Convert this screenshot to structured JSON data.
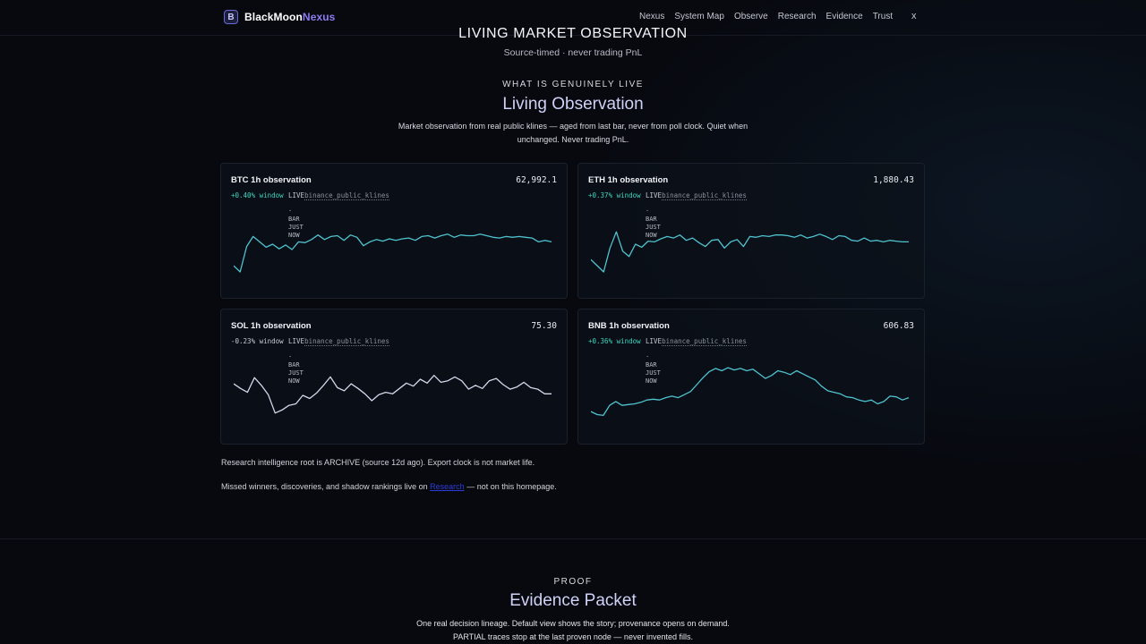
{
  "brand": {
    "mark": "B",
    "name": "BlackMoon",
    "accent": "Nexus"
  },
  "nav": [
    "Nexus",
    "System Map",
    "Observe",
    "Research",
    "Evidence",
    "Trust"
  ],
  "close_label": "x",
  "page": {
    "title": "LIVING MARKET OBSERVATION",
    "subtitle": "Source-timed · never trading PnL"
  },
  "live_section": {
    "eyebrow": "WHAT IS GENUINELY LIVE",
    "title": "Living Observation",
    "description": "Market observation from real public klines — aged from last bar, never from poll clock. Quiet when unchanged. Never trading PnL."
  },
  "cards": [
    {
      "title": "BTC 1h observation",
      "price": "62,992.1",
      "change": "+0.40% window",
      "trend": "up",
      "live": "LIVE",
      "source": "binance_public_klines",
      "bar_note": [
        "·",
        "BAR",
        "JUST",
        "NOW"
      ],
      "line_color": "#4fc3cf",
      "series": [
        22,
        14,
        47,
        60,
        53,
        46,
        50,
        44,
        49,
        43,
        53,
        52,
        56,
        62,
        56,
        60,
        61,
        55,
        62,
        59,
        48,
        53,
        56,
        54,
        57,
        55,
        57,
        58,
        55,
        60,
        61,
        58,
        61,
        63,
        59,
        62,
        61,
        61,
        63,
        61,
        59,
        58,
        60,
        59,
        60,
        59,
        58,
        53,
        55,
        53
      ]
    },
    {
      "title": "ETH 1h observation",
      "price": "1,880.43",
      "change": "+0.37% window",
      "trend": "up",
      "live": "LIVE",
      "source": "binance_public_klines",
      "bar_note": [
        "·",
        "BAR",
        "JUST",
        "NOW"
      ],
      "line_color": "#4fc3cf",
      "series": [
        30,
        22,
        14,
        45,
        66,
        41,
        34,
        50,
        46,
        54,
        53,
        57,
        60,
        58,
        62,
        55,
        58,
        52,
        47,
        55,
        56,
        45,
        53,
        56,
        47,
        60,
        59,
        61,
        60,
        62,
        62,
        61,
        59,
        62,
        58,
        60,
        63,
        60,
        56,
        61,
        60,
        55,
        54,
        58,
        54,
        55,
        53,
        55,
        54,
        53,
        53
      ]
    },
    {
      "title": "SOL 1h observation",
      "price": "75.30",
      "change": "-0.23% window",
      "trend": "down",
      "live": "LIVE",
      "source": "binance_public_klines",
      "bar_note": [
        "·",
        "BAR",
        "JUST",
        "NOW"
      ],
      "line_color": "#d4d6ea",
      "series": [
        58,
        52,
        47,
        66,
        56,
        44,
        20,
        24,
        30,
        32,
        43,
        39,
        46,
        56,
        67,
        53,
        49,
        58,
        52,
        45,
        36,
        44,
        47,
        45,
        52,
        59,
        55,
        64,
        59,
        69,
        60,
        62,
        67,
        62,
        51,
        56,
        52,
        62,
        65,
        57,
        51,
        54,
        60,
        53,
        51,
        45,
        45
      ]
    },
    {
      "title": "BNB 1h observation",
      "price": "606.83",
      "change": "+0.36% window",
      "trend": "up",
      "live": "LIVE",
      "source": "binance_public_klines",
      "bar_note": [
        "·",
        "BAR",
        "JUST",
        "NOW"
      ],
      "line_color": "#4fc3cf",
      "series": [
        22,
        18,
        17,
        30,
        35,
        30,
        31,
        32,
        34,
        37,
        38,
        37,
        40,
        42,
        40,
        44,
        48,
        57,
        66,
        74,
        78,
        75,
        79,
        76,
        78,
        75,
        77,
        71,
        65,
        69,
        75,
        73,
        70,
        75,
        71,
        67,
        63,
        55,
        49,
        47,
        45,
        41,
        40,
        37,
        35,
        37,
        32,
        35,
        42,
        41,
        37,
        40
      ]
    }
  ],
  "notes": {
    "archive": "Research intelligence root is ARCHIVE (source 12d ago). Export clock is not market life.",
    "missed_before": "Missed winners, discoveries, and shadow rankings live on",
    "missed_link": "Research",
    "missed_after": "— not on this homepage."
  },
  "proof_section": {
    "eyebrow": "PROOF",
    "title": "Evidence Packet",
    "description_1": "One real decision lineage. Default view shows the story; provenance opens on demand.",
    "description_2": "PARTIAL traces stop at the last proven node — never invented fills."
  }
}
